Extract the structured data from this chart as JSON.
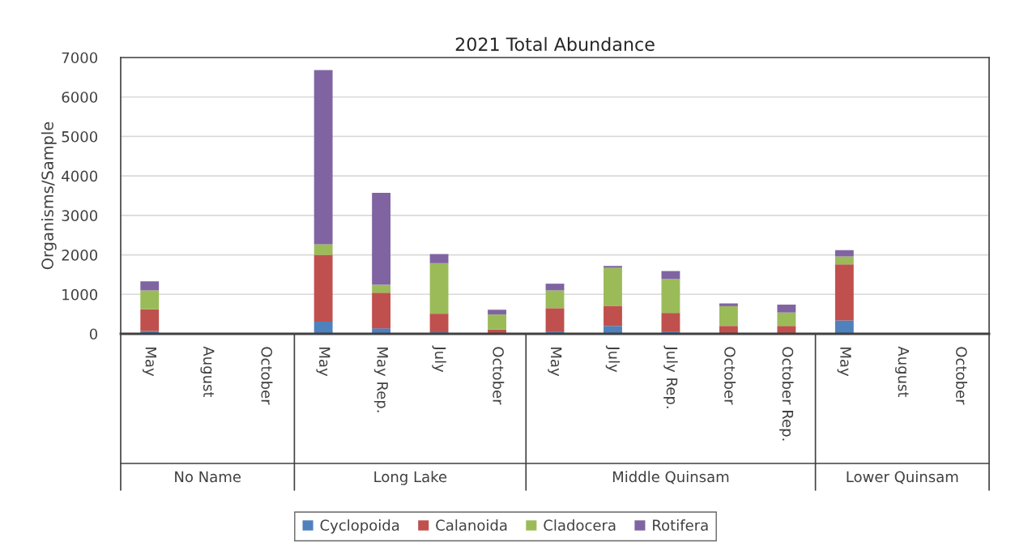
{
  "chart_data": {
    "type": "bar",
    "stacked": true,
    "title": "2021 Total Abundance",
    "ylabel": "Organisms/Sample",
    "categories": [
      "May",
      "August",
      "October",
      "May",
      "May Rep.",
      "July",
      "October",
      "May",
      "July",
      "July Rep.",
      "October",
      "October Rep.",
      "May",
      "August",
      "October"
    ],
    "annotations": [
      "No Name",
      "Long Lake",
      "Middle Quinsam",
      "Lower Quinsam"
    ],
    "series": [
      {
        "name": "Cyclopoida",
        "color": "#4f81bd",
        "values": [
          70,
          null,
          null,
          310,
          140,
          40,
          null,
          60,
          200,
          60,
          null,
          null,
          340,
          null,
          null
        ]
      },
      {
        "name": "Calanoida",
        "color": "#c0504d",
        "values": [
          550,
          null,
          null,
          1690,
          900,
          470,
          110,
          590,
          510,
          470,
          200,
          200,
          1420,
          null,
          null
        ]
      },
      {
        "name": "Cladocera",
        "color": "#9bbb59",
        "values": [
          480,
          null,
          null,
          270,
          200,
          1280,
          380,
          450,
          960,
          860,
          500,
          340,
          200,
          null,
          null
        ]
      },
      {
        "name": "Rotifera",
        "color": "#8064a2",
        "values": [
          230,
          null,
          null,
          4410,
          2330,
          230,
          120,
          170,
          50,
          200,
          70,
          200,
          160,
          null,
          null
        ]
      }
    ],
    "ylim": [
      0,
      7000
    ],
    "yticks": [
      0,
      1000,
      2000,
      3000,
      4000,
      5000,
      6000,
      7000
    ],
    "grid": "y",
    "legend": "bottom"
  }
}
